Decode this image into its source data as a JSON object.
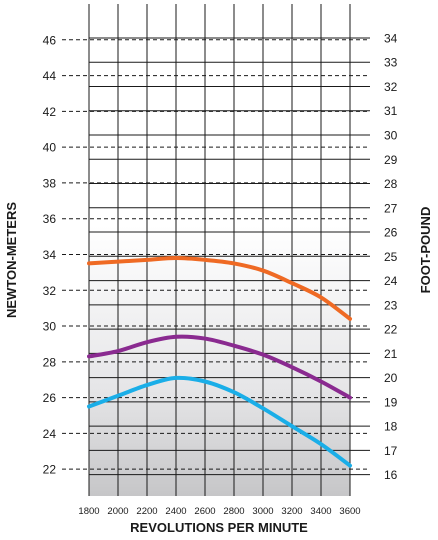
{
  "chart_data": {
    "type": "line",
    "x": [
      1800,
      2000,
      2200,
      2400,
      2600,
      2800,
      3000,
      3200,
      3400,
      3600
    ],
    "x_tick_labels": [
      "1800",
      "2000",
      "2200",
      "2400",
      "2600",
      "2800",
      "3000",
      "3200",
      "3400",
      "3600"
    ],
    "xlabel": "REVOLUTIONS PER MINUTE",
    "ylabel_left": "NEWTON-METERS",
    "ylabel_right": "FOOT-POUND",
    "ylim_left": [
      20.5,
      48
    ],
    "ylim_right": [
      15.12,
      35.4
    ],
    "y_ticks_left": [
      "22",
      "24",
      "26",
      "28",
      "30",
      "32",
      "34",
      "36",
      "38",
      "40",
      "42",
      "44",
      "46"
    ],
    "y_ticks_right": [
      "16",
      "17",
      "18",
      "19",
      "20",
      "21",
      "22",
      "23",
      "24",
      "25",
      "26",
      "27",
      "28",
      "29",
      "30",
      "31",
      "32",
      "33",
      "34"
    ],
    "grid": true,
    "series": [
      {
        "color": "#ef6a24",
        "values": [
          33.5,
          33.6,
          33.7,
          33.8,
          33.7,
          33.5,
          33.1,
          32.4,
          31.6,
          30.4
        ]
      },
      {
        "color": "#8a2a90",
        "values": [
          28.3,
          28.6,
          29.1,
          29.4,
          29.3,
          28.9,
          28.4,
          27.7,
          26.9,
          26.0
        ]
      },
      {
        "color": "#1aaee8",
        "values": [
          25.5,
          26.1,
          26.7,
          27.1,
          26.9,
          26.3,
          25.4,
          24.4,
          23.4,
          22.2
        ]
      }
    ]
  }
}
